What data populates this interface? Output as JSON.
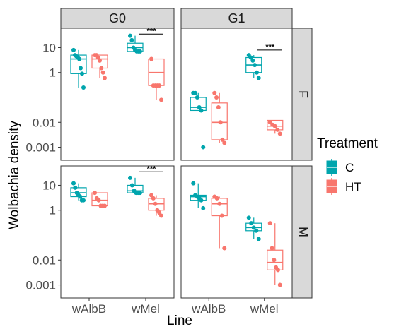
{
  "chart_data": {
    "type": "boxplot",
    "xlabel": "Line",
    "ylabel": "Wolbachia density",
    "yscale": "log10",
    "ylim": [
      0.0003,
      60
    ],
    "y_ticks": [
      0.001,
      0.01,
      1,
      10
    ],
    "y_tick_labels": [
      "0.001",
      "0.01",
      "1",
      "10"
    ],
    "categories": [
      "wAlbB",
      "wMel"
    ],
    "facet_columns": [
      "G0",
      "G1"
    ],
    "facet_rows": [
      "F",
      "M"
    ],
    "legend": {
      "title": "Treatment",
      "placement": "right",
      "entries": [
        {
          "label": "C",
          "color": "#00a5ad"
        },
        {
          "label": "HT",
          "color": "#f8766d"
        }
      ]
    },
    "panels": [
      {
        "col": "G0",
        "row": "F",
        "groups": [
          {
            "line": "wAlbB",
            "treatment": "C",
            "q1": 0.9,
            "median": 3.5,
            "q3": 5,
            "whisker_low": 0.25,
            "whisker_high": 8,
            "points": [
              8,
              5,
              4.5,
              4,
              3.5,
              1.5,
              0.9,
              0.25
            ]
          },
          {
            "line": "wAlbB",
            "treatment": "HT",
            "q1": 1.5,
            "median": 3.5,
            "q3": 5,
            "whisker_low": 0.6,
            "whisker_high": 5,
            "points": [
              5,
              5,
              4,
              3,
              1.5,
              1,
              0.6
            ]
          },
          {
            "line": "wMel",
            "treatment": "C",
            "q1": 7,
            "median": 10,
            "q3": 15,
            "whisker_low": 7,
            "whisker_high": 30,
            "points": [
              30,
              20,
              10,
              8,
              7,
              7,
              7
            ]
          },
          {
            "line": "wMel",
            "treatment": "HT",
            "q1": 0.3,
            "median": 1,
            "q3": 3.5,
            "whisker_low": 0.08,
            "whisker_high": 3.5,
            "points": [
              3.5,
              0.3,
              0.3,
              0.3,
              0.3,
              0.08
            ]
          }
        ],
        "significance": {
          "text": "***",
          "from": "wMel-C",
          "to": "wMel-HT"
        }
      },
      {
        "col": "G1",
        "row": "F",
        "groups": [
          {
            "line": "wAlbB",
            "treatment": "C",
            "q1": 0.03,
            "median": 0.04,
            "q3": 0.1,
            "whisker_low": 0.03,
            "whisker_high": 0.15,
            "points": [
              0.15,
              0.15,
              0.1,
              0.04,
              0.03,
              0.001
            ]
          },
          {
            "line": "wAlbB",
            "treatment": "HT",
            "q1": 0.002,
            "median": 0.01,
            "q3": 0.06,
            "whisker_low": 0.0015,
            "whisker_high": 0.15,
            "points": [
              0.15,
              0.1,
              0.04,
              0.01,
              0.002,
              0.0015
            ]
          },
          {
            "line": "wMel",
            "treatment": "C",
            "q1": 1,
            "median": 2,
            "q3": 4,
            "whisker_low": 0.6,
            "whisker_high": 5,
            "points": [
              5,
              4,
              3,
              2,
              1,
              0.6
            ]
          },
          {
            "line": "wMel",
            "treatment": "HT",
            "q1": 0.005,
            "median": 0.007,
            "q3": 0.012,
            "whisker_low": 0.0035,
            "whisker_high": 0.012,
            "points": [
              0.01,
              0.008,
              0.007,
              0.005,
              0.0035
            ]
          }
        ],
        "significance": {
          "text": "***",
          "from": "wMel-C",
          "to": "wMel-HT"
        }
      },
      {
        "col": "G0",
        "row": "M",
        "groups": [
          {
            "line": "wAlbB",
            "treatment": "C",
            "q1": 3.5,
            "median": 5,
            "q3": 8,
            "whisker_low": 2.5,
            "whisker_high": 12,
            "points": [
              12,
              8,
              5,
              4,
              3.5,
              2.5,
              2.5
            ]
          },
          {
            "line": "wAlbB",
            "treatment": "HT",
            "q1": 1.5,
            "median": 2.5,
            "q3": 5,
            "whisker_low": 1.5,
            "whisker_high": 5,
            "points": [
              5,
              3,
              2.5,
              1.5,
              1.5,
              1.5
            ]
          },
          {
            "line": "wMel",
            "treatment": "C",
            "q1": 5,
            "median": 6,
            "q3": 10,
            "whisker_low": 5,
            "whisker_high": 20,
            "points": [
              20,
              10,
              6,
              5,
              5,
              5
            ]
          },
          {
            "line": "wMel",
            "treatment": "HT",
            "q1": 1,
            "median": 1.8,
            "q3": 3,
            "whisker_low": 0.6,
            "whisker_high": 4,
            "points": [
              4,
              3,
              1.8,
              1,
              0.8,
              0.6
            ]
          }
        ],
        "significance": {
          "text": "***",
          "from": "wMel-C",
          "to": "wMel-HT"
        }
      },
      {
        "col": "G1",
        "row": "M",
        "groups": [
          {
            "line": "wAlbB",
            "treatment": "C",
            "q1": 2.5,
            "median": 3.5,
            "q3": 4,
            "whisker_low": 1.2,
            "whisker_high": 12,
            "points": [
              12,
              4,
              3.5,
              3,
              2.5,
              1.2
            ]
          },
          {
            "line": "wAlbB",
            "treatment": "HT",
            "q1": 0.6,
            "median": 1.8,
            "q3": 3,
            "whisker_low": 0.03,
            "whisker_high": 3.5,
            "points": [
              3.5,
              3,
              1.8,
              0.6,
              0.03
            ]
          },
          {
            "line": "wMel",
            "treatment": "C",
            "q1": 0.15,
            "median": 0.2,
            "q3": 0.3,
            "whisker_low": 0.07,
            "whisker_high": 0.5,
            "points": [
              0.5,
              0.3,
              0.2,
              0.15,
              0.07
            ]
          },
          {
            "line": "wMel",
            "treatment": "HT",
            "q1": 0.004,
            "median": 0.008,
            "q3": 0.025,
            "whisker_low": 0.001,
            "whisker_high": 0.3,
            "points": [
              0.3,
              0.03,
              0.01,
              0.005,
              0.004,
              0.001
            ]
          }
        ]
      }
    ]
  }
}
